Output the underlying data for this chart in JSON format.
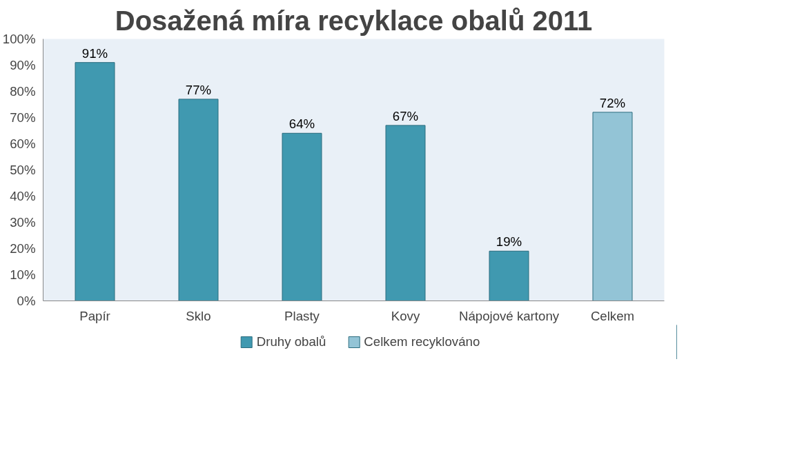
{
  "chart_data": {
    "type": "bar",
    "title": "Dosažená míra recyklace obalů 2011",
    "categories": [
      "Papír",
      "Sklo",
      "Plasty",
      "Kovy",
      "Nápojové kartony",
      "Celkem"
    ],
    "series": [
      {
        "name": "Druhy obalů",
        "color": "#4099b0",
        "values": [
          91,
          77,
          64,
          67,
          19,
          null
        ],
        "value_labels": [
          "91%",
          "77%",
          "64%",
          "67%",
          "19%",
          null
        ]
      },
      {
        "name": "Celkem recyklováno",
        "color": "#93c4d6",
        "values": [
          null,
          null,
          null,
          null,
          null,
          72
        ],
        "value_labels": [
          null,
          null,
          null,
          null,
          null,
          "72%"
        ]
      }
    ],
    "ylim": [
      0,
      100
    ],
    "yticks": [
      {
        "value": 0,
        "label": "0%"
      },
      {
        "value": 10,
        "label": "10%"
      },
      {
        "value": 20,
        "label": "20%"
      },
      {
        "value": 30,
        "label": "30%"
      },
      {
        "value": 40,
        "label": "40%"
      },
      {
        "value": 50,
        "label": "50%"
      },
      {
        "value": 60,
        "label": "60%"
      },
      {
        "value": 70,
        "label": "70%"
      },
      {
        "value": 80,
        "label": "80%"
      },
      {
        "value": 90,
        "label": "90%"
      },
      {
        "value": 100,
        "label": "100%"
      }
    ],
    "grid": false,
    "legend": "bottom"
  }
}
